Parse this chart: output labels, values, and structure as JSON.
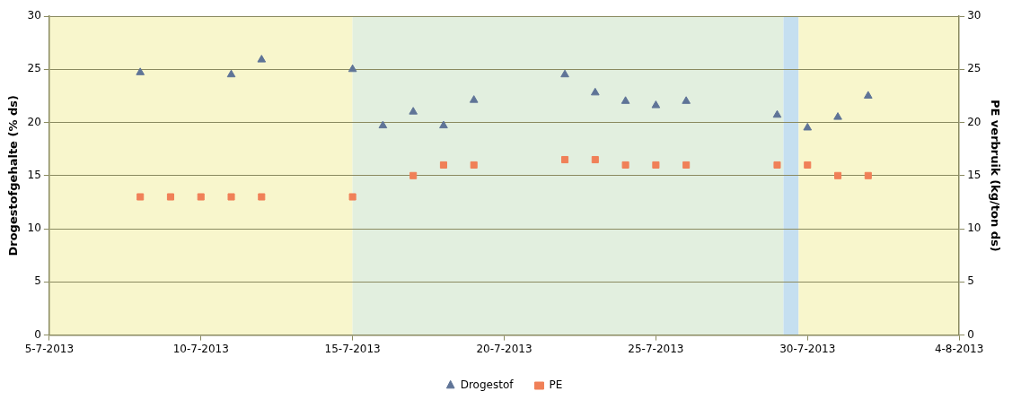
{
  "chart_data": {
    "type": "scatter",
    "ylabel": "Drogestofgehalte (% ds)",
    "y2label": "PE verbruik (kg/ton ds)",
    "xlim": [
      "2013-07-05",
      "2013-08-04"
    ],
    "xticks": [
      {
        "value": "2013-07-05",
        "label": "5-7-2013"
      },
      {
        "value": "2013-07-10",
        "label": "10-7-2013"
      },
      {
        "value": "2013-07-15",
        "label": "15-7-2013"
      },
      {
        "value": "2013-07-20",
        "label": "20-7-2013"
      },
      {
        "value": "2013-07-25",
        "label": "25-7-2013"
      },
      {
        "value": "2013-07-30",
        "label": "30-7-2013"
      },
      {
        "value": "2013-08-04",
        "label": "4-8-2013"
      }
    ],
    "ylim": [
      0,
      30
    ],
    "yticks": [
      0,
      5,
      10,
      15,
      20,
      25,
      30
    ],
    "y2lim": [
      0,
      30
    ],
    "y2ticks": [
      0,
      5,
      10,
      15,
      20,
      25,
      30
    ],
    "grid": "y",
    "legend": "bottom",
    "bands": [
      {
        "axis": "x",
        "from": "2013-07-05",
        "to": "2013-07-15",
        "color": "#f8f6cc"
      },
      {
        "axis": "x",
        "from": "2013-07-15",
        "to": "2013-07-29T05:00",
        "color": "#e2efdf"
      },
      {
        "axis": "x",
        "from": "2013-07-29T05:00",
        "to": "2013-07-29T17:00",
        "color": "#c5dff0"
      },
      {
        "axis": "x",
        "from": "2013-07-29T17:00",
        "to": "2013-08-04",
        "color": "#f8f6cc"
      }
    ],
    "series": [
      {
        "name": "Drogestof",
        "color": "#5f7497",
        "marker": "triangle",
        "x": [
          "2013-07-08",
          "2013-07-11",
          "2013-07-12",
          "2013-07-15",
          "2013-07-16",
          "2013-07-17",
          "2013-07-18",
          "2013-07-19",
          "2013-07-22",
          "2013-07-23",
          "2013-07-24",
          "2013-07-25",
          "2013-07-26",
          "2013-07-29",
          "2013-07-30",
          "2013-07-31",
          "2013-08-01"
        ],
        "values": [
          24.7,
          24.5,
          25.9,
          25.0,
          19.7,
          21.0,
          19.7,
          22.1,
          24.5,
          22.8,
          22.0,
          21.6,
          22.0,
          20.7,
          19.5,
          20.5,
          22.5
        ]
      },
      {
        "name": "PE",
        "color": "#f08058",
        "marker": "square",
        "axis": "y2",
        "x": [
          "2013-07-08",
          "2013-07-09",
          "2013-07-10",
          "2013-07-11",
          "2013-07-12",
          "2013-07-15",
          "2013-07-17",
          "2013-07-18",
          "2013-07-19",
          "2013-07-22",
          "2013-07-23",
          "2013-07-24",
          "2013-07-25",
          "2013-07-26",
          "2013-07-29",
          "2013-07-30",
          "2013-07-31",
          "2013-08-01"
        ],
        "values": [
          13,
          13,
          13,
          13,
          13,
          13,
          15,
          16,
          16,
          16.5,
          16.5,
          16,
          16,
          16,
          16,
          16,
          15,
          15
        ]
      }
    ]
  }
}
